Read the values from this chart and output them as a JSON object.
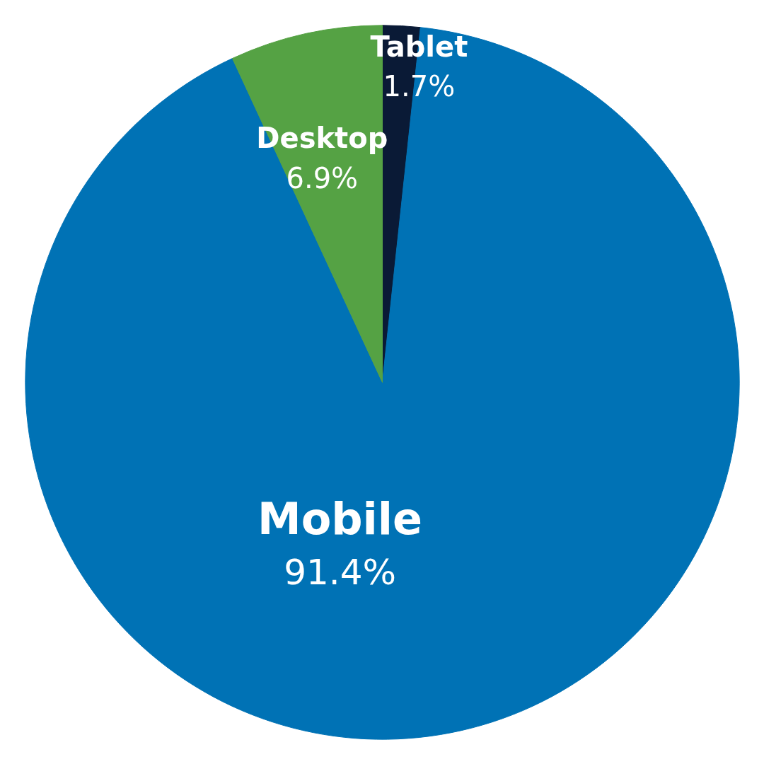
{
  "chart_data": {
    "type": "pie",
    "categories": [
      "Tablet",
      "Mobile",
      "Desktop"
    ],
    "values": [
      1.7,
      91.4,
      6.9
    ],
    "colors": [
      "#0a1a36",
      "#0072b5",
      "#55a244"
    ],
    "value_labels": [
      "1.7%",
      "91.4%",
      "6.9%"
    ]
  }
}
